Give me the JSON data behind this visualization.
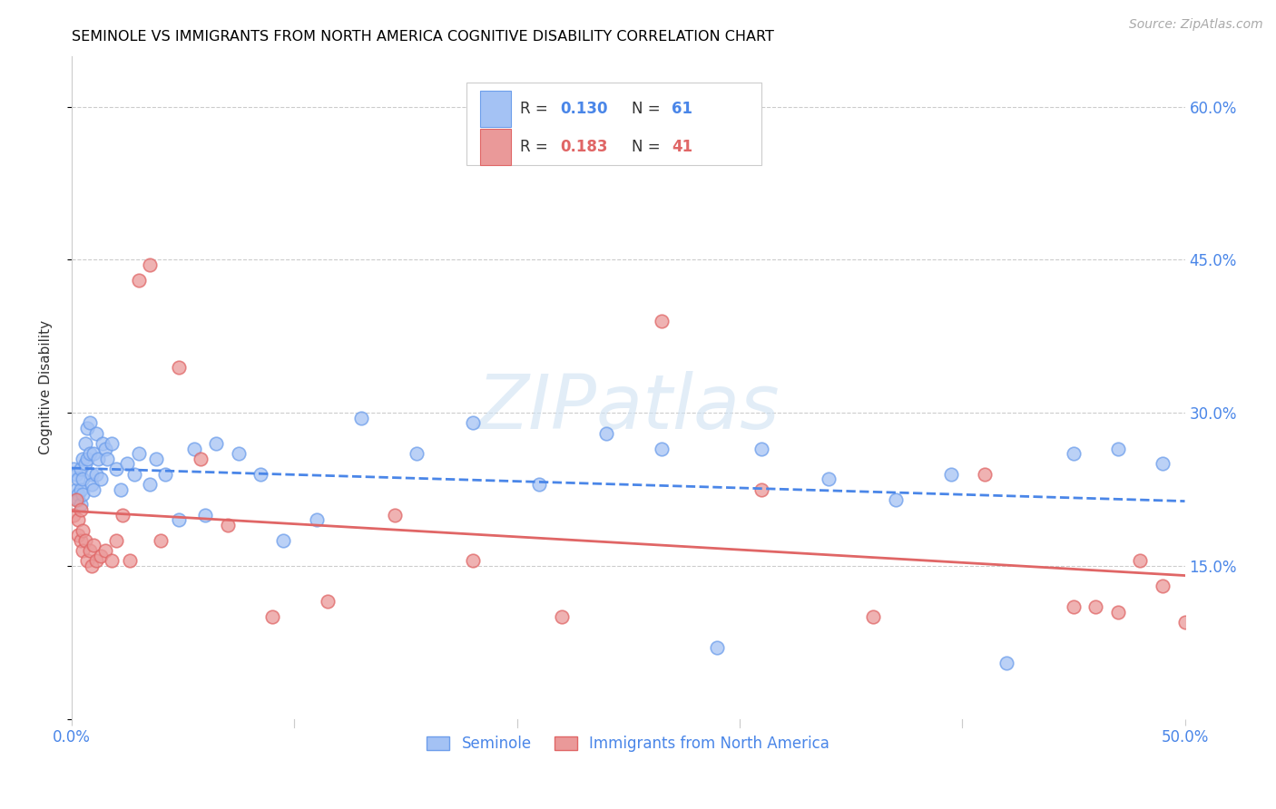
{
  "title": "SEMINOLE VS IMMIGRANTS FROM NORTH AMERICA COGNITIVE DISABILITY CORRELATION CHART",
  "source": "Source: ZipAtlas.com",
  "ylabel": "Cognitive Disability",
  "xlim": [
    0.0,
    0.5
  ],
  "ylim": [
    0.0,
    0.65
  ],
  "color_blue_fill": "#a4c2f4",
  "color_blue_edge": "#6d9eeb",
  "color_pink_fill": "#ea9999",
  "color_pink_edge": "#e06666",
  "color_blue_line": "#4a86e8",
  "color_pink_line": "#e06666",
  "color_axis_text": "#4a86e8",
  "color_grid": "#cccccc",
  "watermark_color": "#cfe2f3",
  "seminole_x": [
    0.001,
    0.002,
    0.002,
    0.003,
    0.003,
    0.003,
    0.004,
    0.004,
    0.004,
    0.005,
    0.005,
    0.005,
    0.006,
    0.006,
    0.007,
    0.007,
    0.008,
    0.008,
    0.009,
    0.009,
    0.01,
    0.01,
    0.011,
    0.011,
    0.012,
    0.013,
    0.014,
    0.015,
    0.016,
    0.018,
    0.02,
    0.022,
    0.025,
    0.028,
    0.03,
    0.035,
    0.038,
    0.042,
    0.048,
    0.055,
    0.06,
    0.065,
    0.075,
    0.085,
    0.095,
    0.11,
    0.13,
    0.155,
    0.18,
    0.21,
    0.24,
    0.265,
    0.29,
    0.31,
    0.34,
    0.37,
    0.395,
    0.42,
    0.45,
    0.47,
    0.49
  ],
  "seminole_y": [
    0.245,
    0.225,
    0.24,
    0.22,
    0.235,
    0.215,
    0.225,
    0.245,
    0.21,
    0.255,
    0.235,
    0.22,
    0.27,
    0.25,
    0.285,
    0.255,
    0.29,
    0.26,
    0.24,
    0.23,
    0.26,
    0.225,
    0.28,
    0.24,
    0.255,
    0.235,
    0.27,
    0.265,
    0.255,
    0.27,
    0.245,
    0.225,
    0.25,
    0.24,
    0.26,
    0.23,
    0.255,
    0.24,
    0.195,
    0.265,
    0.2,
    0.27,
    0.26,
    0.24,
    0.175,
    0.195,
    0.295,
    0.26,
    0.29,
    0.23,
    0.28,
    0.265,
    0.07,
    0.265,
    0.235,
    0.215,
    0.24,
    0.055,
    0.26,
    0.265,
    0.25
  ],
  "immigrants_x": [
    0.001,
    0.002,
    0.003,
    0.003,
    0.004,
    0.004,
    0.005,
    0.005,
    0.006,
    0.007,
    0.008,
    0.009,
    0.01,
    0.011,
    0.013,
    0.015,
    0.018,
    0.02,
    0.023,
    0.026,
    0.03,
    0.035,
    0.04,
    0.048,
    0.058,
    0.07,
    0.09,
    0.115,
    0.145,
    0.18,
    0.22,
    0.265,
    0.31,
    0.36,
    0.41,
    0.45,
    0.47,
    0.49,
    0.5,
    0.48,
    0.46
  ],
  "immigrants_y": [
    0.2,
    0.215,
    0.195,
    0.18,
    0.205,
    0.175,
    0.185,
    0.165,
    0.175,
    0.155,
    0.165,
    0.15,
    0.17,
    0.155,
    0.16,
    0.165,
    0.155,
    0.175,
    0.2,
    0.155,
    0.43,
    0.445,
    0.175,
    0.345,
    0.255,
    0.19,
    0.1,
    0.115,
    0.2,
    0.155,
    0.1,
    0.39,
    0.225,
    0.1,
    0.24,
    0.11,
    0.105,
    0.13,
    0.095,
    0.155,
    0.11
  ]
}
